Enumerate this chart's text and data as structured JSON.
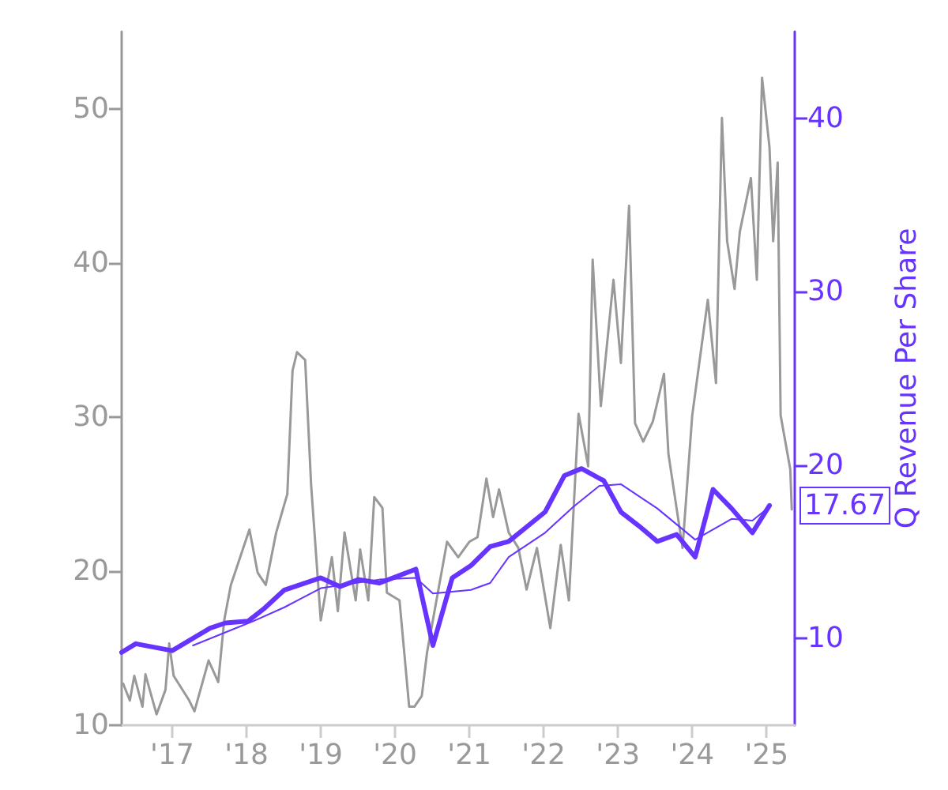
{
  "chart_data": {
    "type": "line",
    "y2label": "Q Revenue Per Share",
    "xlim": [
      2016.32,
      2025.38
    ],
    "xticks": [
      {
        "value": 2017,
        "label": "'17"
      },
      {
        "value": 2018,
        "label": "'18"
      },
      {
        "value": 2019,
        "label": "'19"
      },
      {
        "value": 2020,
        "label": "'20"
      },
      {
        "value": 2021,
        "label": "'21"
      },
      {
        "value": 2022,
        "label": "'22"
      },
      {
        "value": 2023,
        "label": "'23"
      },
      {
        "value": 2024,
        "label": "'24"
      },
      {
        "value": 2025,
        "label": "'25"
      }
    ],
    "ylim": [
      10,
      55
    ],
    "yticks": [
      10,
      20,
      30,
      40,
      50
    ],
    "y2lim": [
      5,
      45
    ],
    "y2ticks": [
      10,
      20,
      30,
      40
    ],
    "grid": false,
    "marker": "none",
    "annotations": [
      "17.67"
    ],
    "series": [
      {
        "color": "#999999",
        "x": [
          2016.34,
          2016.43,
          2016.49,
          2016.6,
          2016.64,
          2016.79,
          2016.91,
          2016.96,
          2017.02,
          2017.23,
          2017.3,
          2017.49,
          2017.62,
          2017.7,
          2017.79,
          2018.04,
          2018.15,
          2018.26,
          2018.4,
          2018.55,
          2018.62,
          2018.68,
          2018.79,
          2018.87,
          2019.0,
          2019.15,
          2019.23,
          2019.32,
          2019.47,
          2019.53,
          2019.64,
          2019.72,
          2019.83,
          2019.89,
          2020.06,
          2020.19,
          2020.26,
          2020.36,
          2020.43,
          2020.7,
          2020.85,
          2021.0,
          2021.11,
          2021.23,
          2021.32,
          2021.4,
          2021.53,
          2021.66,
          2021.77,
          2021.91,
          2022.09,
          2022.23,
          2022.34,
          2022.47,
          2022.6,
          2022.66,
          2022.77,
          2022.94,
          2023.04,
          2023.15,
          2023.23,
          2023.34,
          2023.47,
          2023.62,
          2023.68,
          2023.87,
          2024.0,
          2024.21,
          2024.32,
          2024.4,
          2024.47,
          2024.57,
          2024.64,
          2024.79,
          2024.87,
          2024.94,
          2025.04,
          2025.09,
          2025.15,
          2025.19,
          2025.32,
          2025.34
        ],
        "values": [
          12.7,
          11.6,
          13.2,
          11.2,
          13.3,
          10.7,
          12.3,
          15.3,
          13.2,
          11.6,
          10.9,
          14.2,
          12.8,
          16.8,
          19.1,
          22.7,
          19.9,
          19.1,
          22.5,
          25.0,
          33.0,
          34.2,
          33.7,
          25.6,
          16.8,
          20.9,
          17.4,
          22.5,
          18.1,
          21.4,
          18.1,
          24.8,
          24.1,
          18.6,
          18.1,
          11.2,
          11.2,
          11.9,
          14.7,
          21.9,
          20.9,
          21.9,
          22.2,
          26.0,
          23.5,
          25.3,
          22.5,
          21.5,
          18.8,
          21.5,
          16.3,
          21.7,
          18.1,
          30.2,
          26.8,
          40.2,
          30.7,
          38.9,
          33.5,
          43.7,
          29.6,
          28.4,
          29.7,
          32.8,
          27.6,
          21.5,
          30.1,
          37.6,
          32.2,
          49.4,
          41.4,
          38.3,
          42.0,
          45.5,
          38.9,
          52.0,
          47.5,
          41.4,
          46.5,
          30.1,
          26.6,
          24.0
        ]
      },
      {
        "color": "#6633ff",
        "axis": "y2",
        "x": [
          2016.32,
          2016.51,
          2017.0,
          2017.51,
          2017.72,
          2018.02,
          2018.23,
          2018.51,
          2019.0,
          2019.26,
          2019.51,
          2019.79,
          2020.28,
          2020.51,
          2020.77,
          2021.02,
          2021.28,
          2021.53,
          2022.02,
          2022.28,
          2022.51,
          2022.81,
          2023.04,
          2023.28,
          2023.53,
          2023.79,
          2024.04,
          2024.28,
          2024.53,
          2024.81,
          2025.04
        ],
        "values": [
          9.2,
          9.7,
          9.3,
          10.6,
          10.9,
          11.0,
          11.7,
          12.8,
          13.5,
          13.0,
          13.4,
          13.2,
          14.0,
          9.6,
          13.5,
          14.2,
          15.3,
          15.6,
          17.3,
          19.4,
          19.8,
          19.1,
          17.3,
          16.5,
          15.6,
          16.0,
          14.7,
          18.6,
          17.5,
          16.1,
          17.67
        ]
      },
      {
        "color": "#6633ff",
        "axis": "y2",
        "x": [
          2017.28,
          2018.09,
          2018.51,
          2019.0,
          2019.79,
          2020.28,
          2020.51,
          2021.02,
          2021.28,
          2021.53,
          2022.02,
          2022.4,
          2022.75,
          2023.04,
          2023.53,
          2024.04,
          2024.53,
          2024.81,
          2025.04
        ],
        "values": [
          9.6,
          11.0,
          11.8,
          12.9,
          13.4,
          13.5,
          12.6,
          12.8,
          13.2,
          14.7,
          16.1,
          17.6,
          18.8,
          18.9,
          17.5,
          15.7,
          16.9,
          16.8,
          17.6
        ]
      }
    ]
  }
}
